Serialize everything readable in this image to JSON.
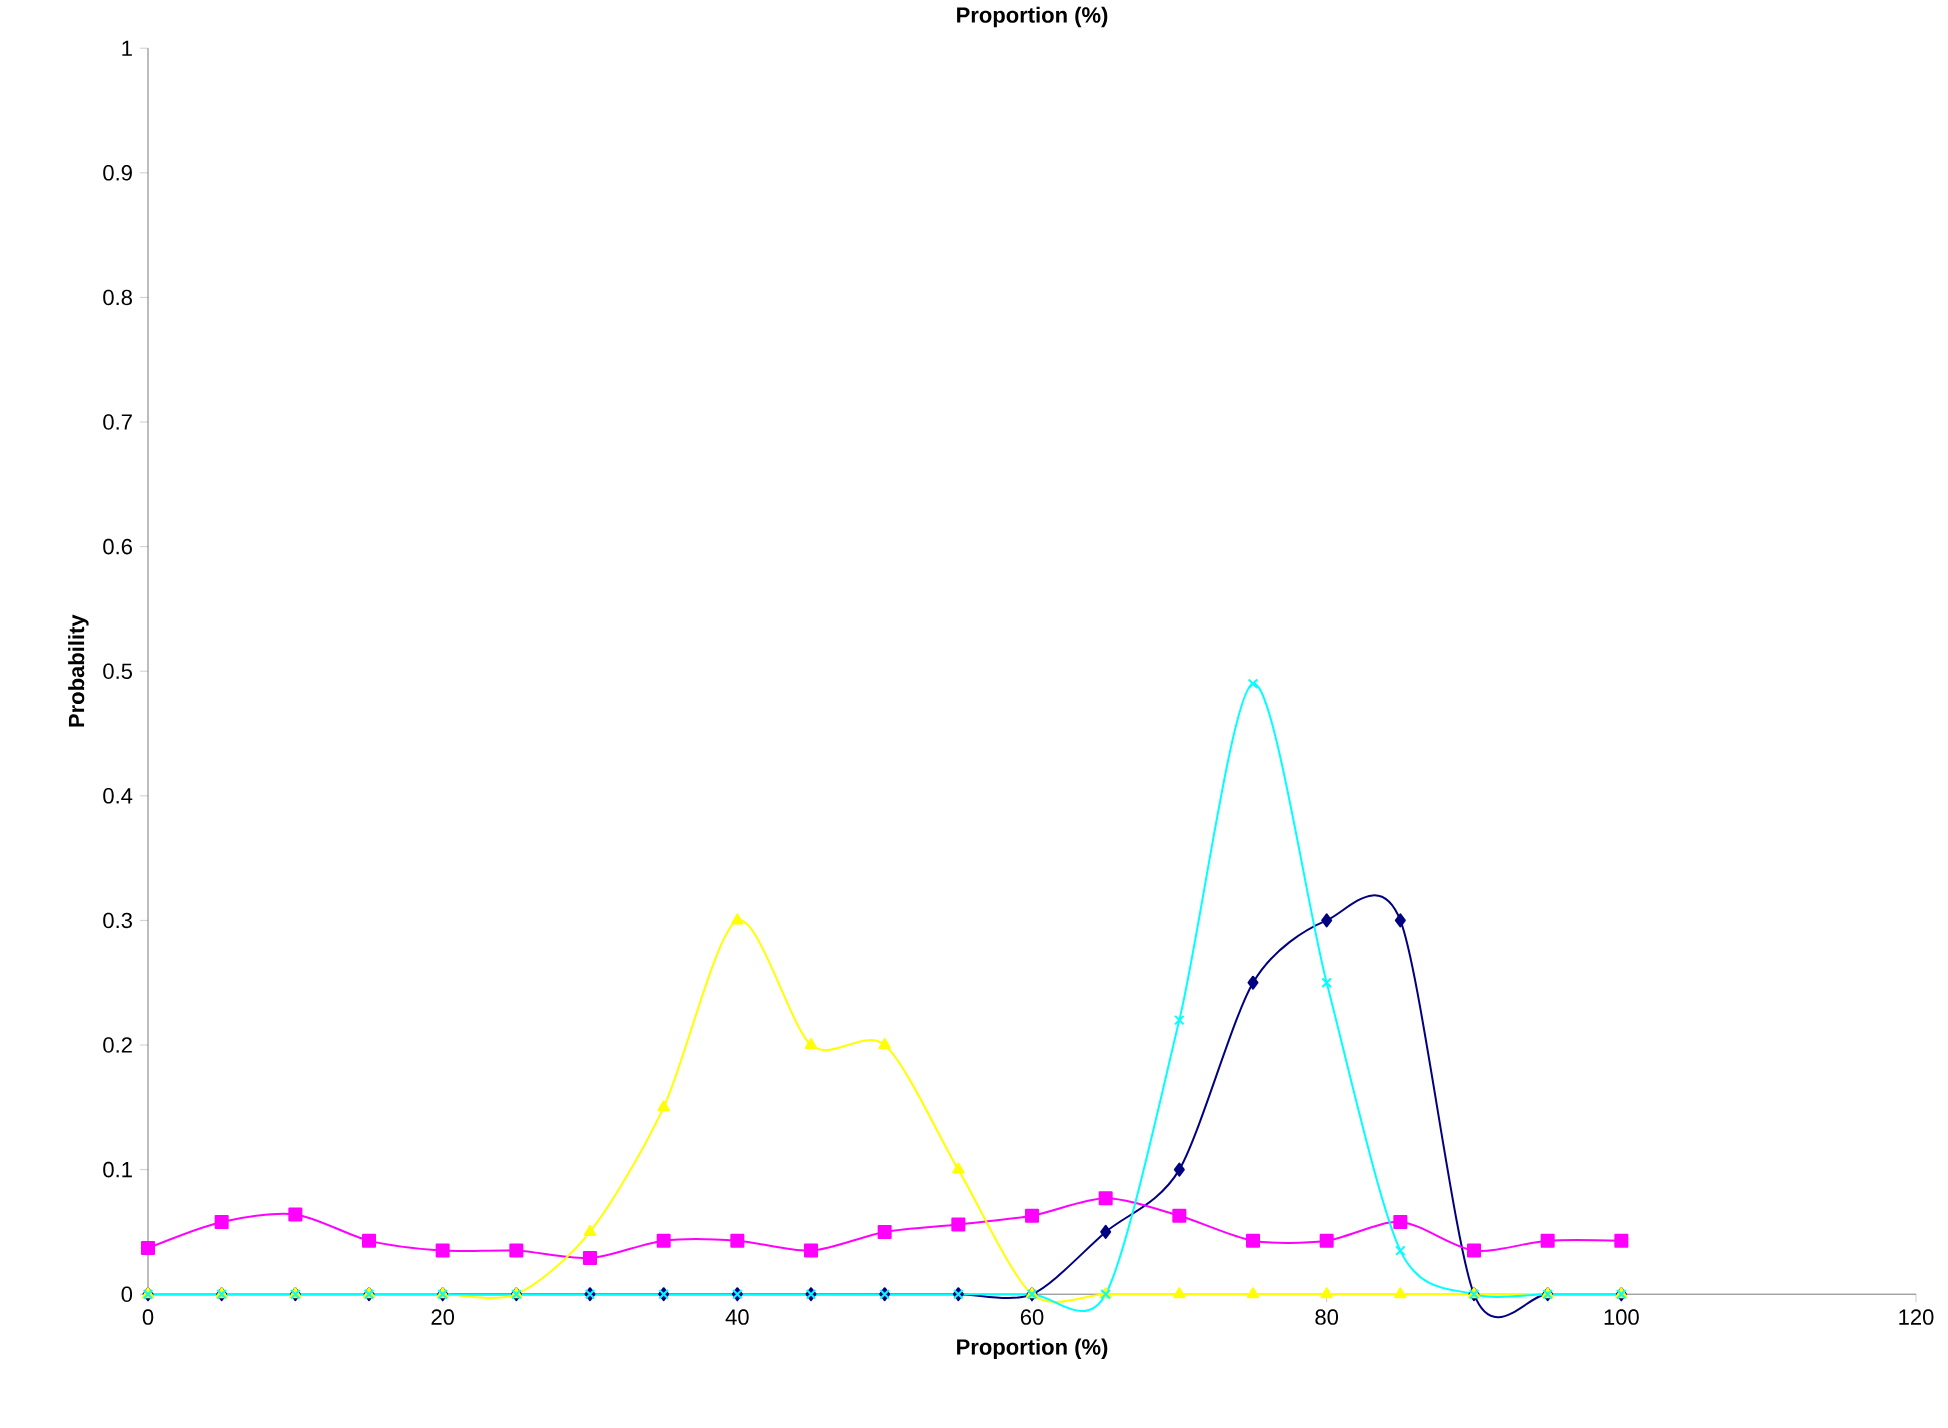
{
  "chart_data": {
    "type": "line",
    "title": "Proportion (%)",
    "xlabel": "Proportion (%)",
    "ylabel": "Probability",
    "x": [
      0,
      5,
      10,
      15,
      20,
      25,
      30,
      35,
      40,
      45,
      50,
      55,
      60,
      65,
      70,
      75,
      80,
      85,
      90,
      95,
      100
    ],
    "series": [
      {
        "color": "#000080",
        "marker": "diamond",
        "values": [
          0,
          0,
          0,
          0,
          0,
          0,
          0,
          0,
          0,
          0,
          0,
          0,
          0,
          0.05,
          0.1,
          0.25,
          0.3,
          0.3,
          0,
          0,
          0
        ]
      },
      {
        "color": "#ff00ff",
        "marker": "square",
        "values": [
          0.037,
          0.058,
          0.064,
          0.043,
          0.035,
          0.035,
          0.029,
          0.043,
          0.043,
          0.035,
          0.05,
          0.056,
          0.063,
          0.077,
          0.063,
          0.043,
          0.043,
          0.058,
          0.035,
          0.043,
          0.043
        ]
      },
      {
        "color": "#ffff00",
        "marker": "triangle",
        "values": [
          0,
          0,
          0,
          0,
          0,
          0,
          0.05,
          0.15,
          0.3,
          0.2,
          0.2,
          0.1,
          0,
          0,
          0,
          0,
          0,
          0,
          0,
          0,
          0
        ]
      },
      {
        "color": "#00ffff",
        "marker": "cross",
        "values": [
          0,
          0,
          0,
          0,
          0,
          0,
          0,
          0,
          0,
          0,
          0,
          0,
          0,
          0,
          0.22,
          0.49,
          0.25,
          0.035,
          0,
          0,
          0
        ]
      }
    ],
    "xlim": [
      0,
      120
    ],
    "xticks": [
      0,
      20,
      40,
      60,
      80,
      100,
      120
    ],
    "ylim": [
      0,
      1
    ],
    "yticks": [
      0,
      0.1,
      0.2,
      0.3,
      0.4,
      0.5,
      0.6,
      0.7,
      0.8,
      0.9,
      1
    ],
    "grid": false,
    "line_style": "solid"
  }
}
